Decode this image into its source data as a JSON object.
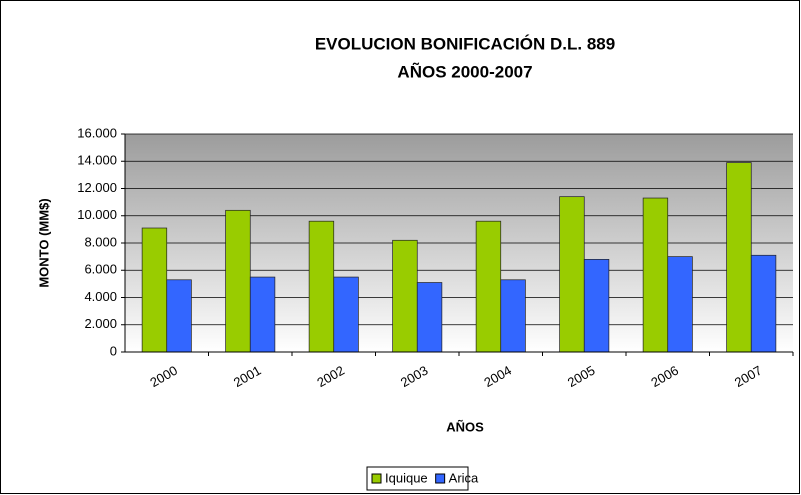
{
  "chart_data": {
    "type": "bar",
    "title": "EVOLUCION BONIFICACIÓN D.L. 889",
    "subtitle": "AÑOS 2000-2007",
    "x_label": "AÑOS",
    "y_label": "MONTO (MM$)",
    "categories": [
      "2000",
      "2001",
      "2002",
      "2003",
      "2004",
      "2005",
      "2006",
      "2007"
    ],
    "series": [
      {
        "name": "Iquique",
        "color": "#99cc00",
        "values": [
          9100,
          10400,
          9600,
          8200,
          9600,
          11400,
          11300,
          13900
        ]
      },
      {
        "name": "Arica",
        "color": "#3366ff",
        "values": [
          5300,
          5500,
          5500,
          5100,
          5300,
          6800,
          7000,
          7100
        ]
      }
    ],
    "ylim": [
      0,
      16000
    ],
    "yticks": [
      0,
      {
        "value": 2000,
        "label": "2.000"
      },
      {
        "value": 4000,
        "label": "4.000"
      },
      {
        "value": 6000,
        "label": "6.000"
      },
      {
        "value": 8000,
        "label": "8.000"
      },
      {
        "value": 10000,
        "label": "10.000"
      },
      {
        "value": 12000,
        "label": "12.000"
      },
      {
        "value": 14000,
        "label": "14.000"
      },
      {
        "value": 16000,
        "label": "16.000"
      }
    ],
    "grid": true,
    "legend": "bottom"
  }
}
